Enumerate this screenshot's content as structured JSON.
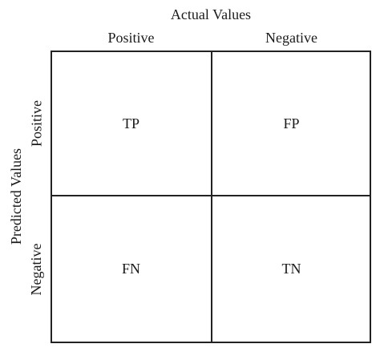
{
  "x_axis": {
    "title": "Actual Values",
    "columns": [
      "Positive",
      "Negative"
    ]
  },
  "y_axis": {
    "title": "Predicted Values",
    "rows": [
      "Positive",
      "Negative"
    ]
  },
  "cells": {
    "top_left": "TP",
    "top_right": "FP",
    "bottom_left": "FN",
    "bottom_right": "TN"
  }
}
